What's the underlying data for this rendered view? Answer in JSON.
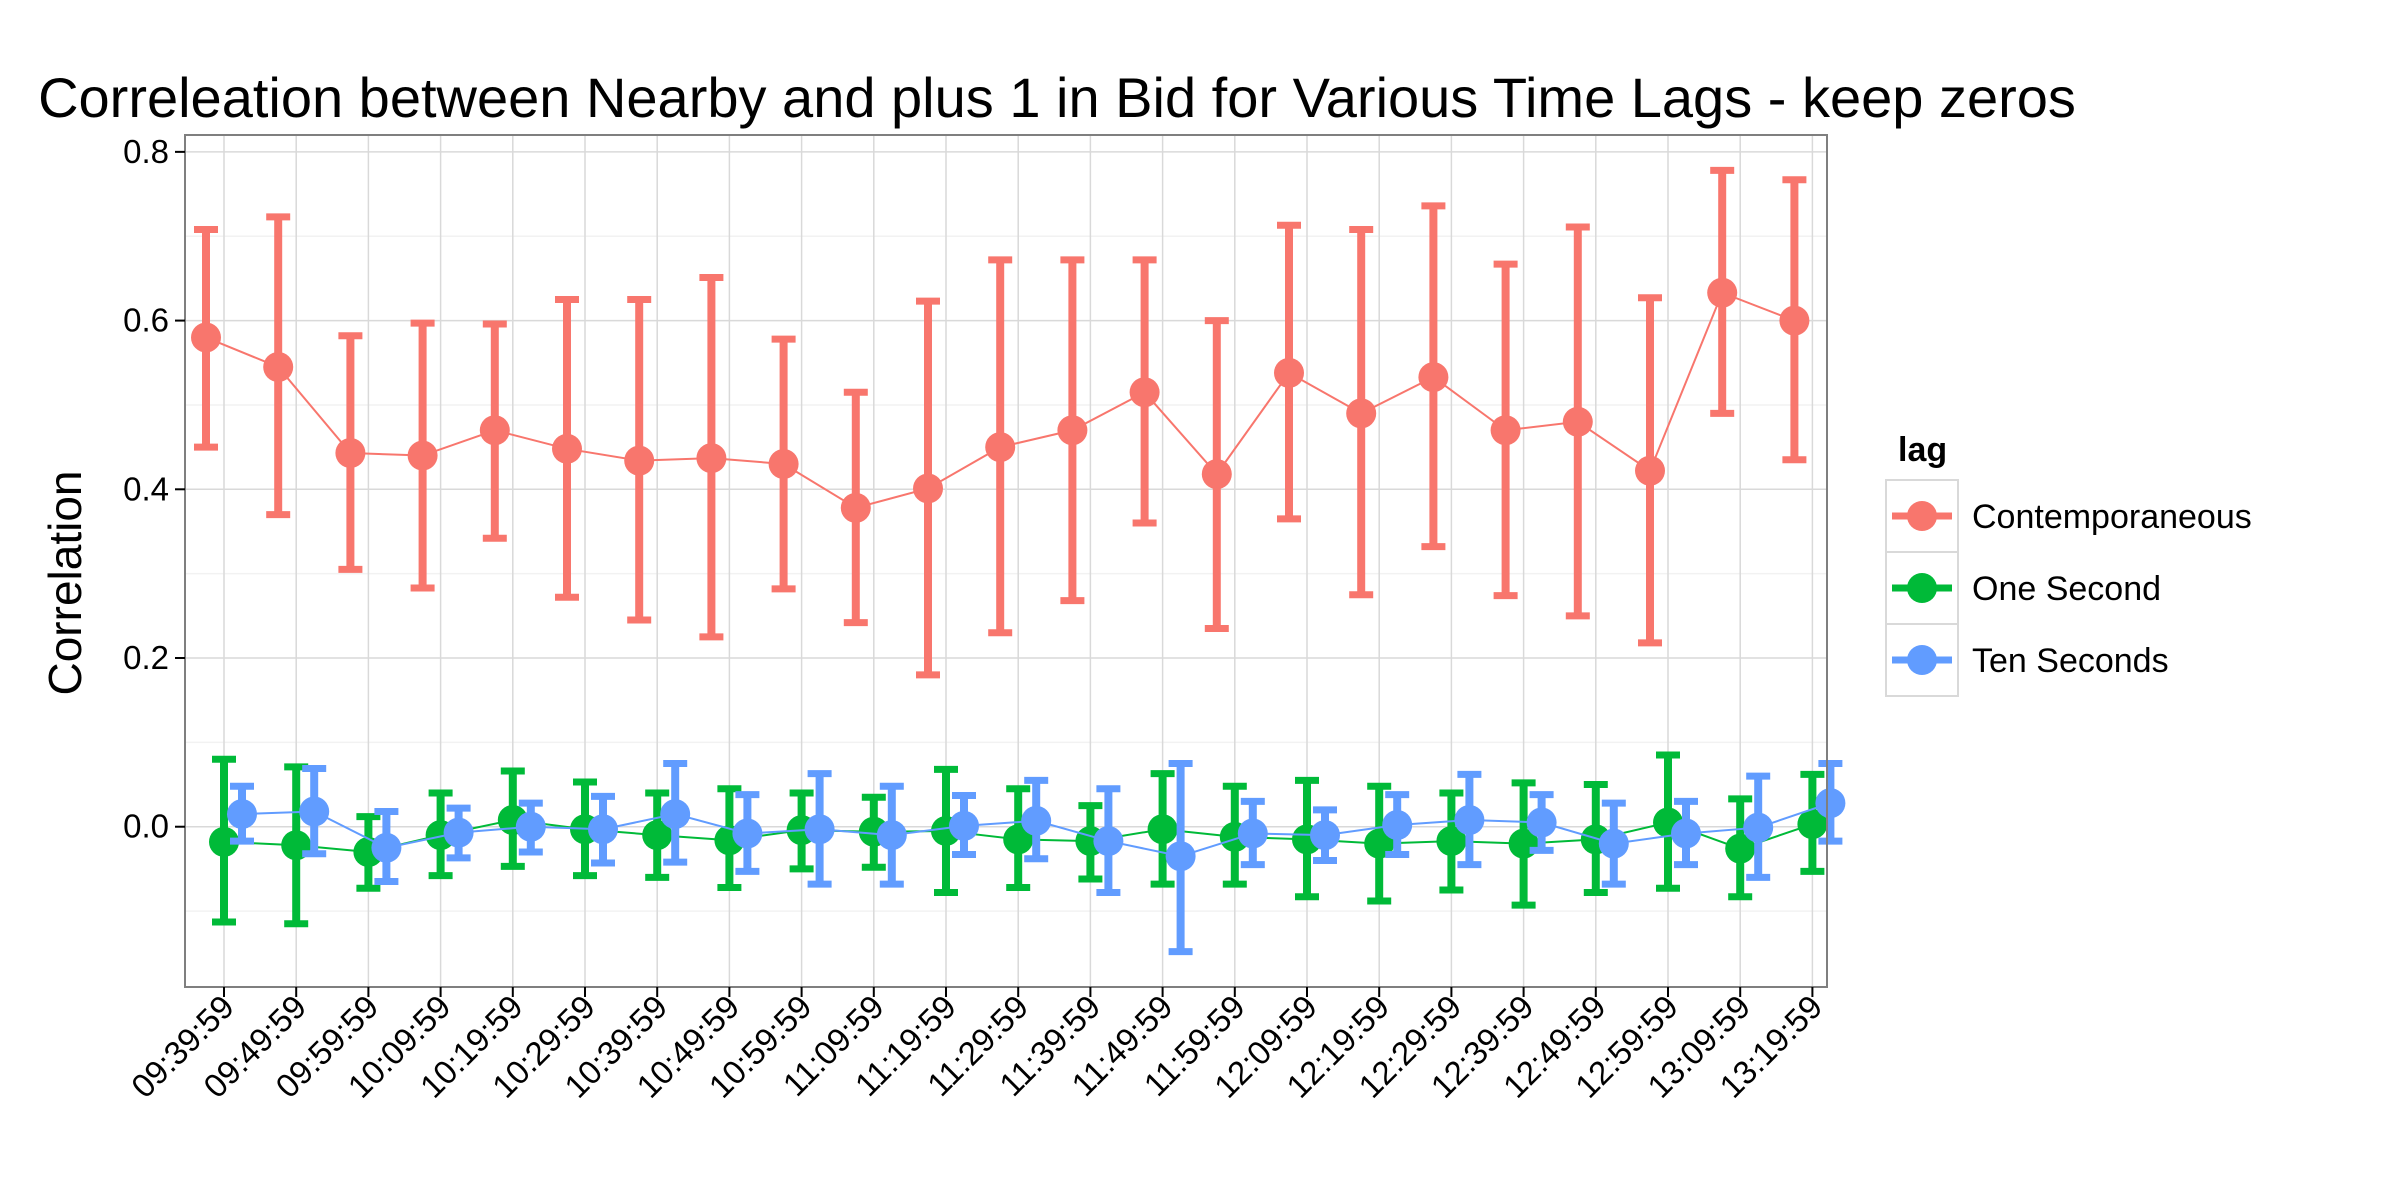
{
  "chart_data": {
    "type": "line",
    "title": "Correleation between Nearby and plus 1 in Bid for Various Time Lags - keep zeros",
    "xlabel": "",
    "ylabel": "Correlation",
    "ylim": [
      -0.19,
      0.82
    ],
    "yticks": [
      0.0,
      0.2,
      0.4,
      0.6,
      0.8
    ],
    "ytick_labels": [
      "0.0",
      "0.2",
      "0.4",
      "0.6",
      "0.8"
    ],
    "grid": true,
    "legend_position": "right",
    "legend_title": "lag",
    "x": [
      "09:39:59",
      "09:49:59",
      "09:59:59",
      "10:09:59",
      "10:19:59",
      "10:29:59",
      "10:39:59",
      "10:49:59",
      "10:59:59",
      "11:09:59",
      "11:19:59",
      "11:29:59",
      "11:39:59",
      "11:49:59",
      "11:59:59",
      "12:09:59",
      "12:19:59",
      "12:29:59",
      "12:39:59",
      "12:49:59",
      "12:59:59",
      "13:09:59",
      "13:19:59"
    ],
    "series": [
      {
        "name": "Contemporaneous",
        "color": "#F8766D",
        "x_offset": -1,
        "values": [
          0.58,
          0.545,
          0.443,
          0.44,
          0.47,
          0.448,
          0.434,
          0.437,
          0.43,
          0.378,
          0.401,
          0.45,
          0.47,
          0.515,
          0.418,
          0.538,
          0.49,
          0.533,
          0.47,
          0.48,
          0.422,
          0.633,
          0.6
        ],
        "lower": [
          0.45,
          0.37,
          0.305,
          0.283,
          0.342,
          0.272,
          0.245,
          0.225,
          0.282,
          0.242,
          0.18,
          0.23,
          0.268,
          0.36,
          0.235,
          0.365,
          0.275,
          0.332,
          0.274,
          0.25,
          0.218,
          0.49,
          0.435
        ],
        "upper": [
          0.708,
          0.723,
          0.582,
          0.597,
          0.596,
          0.625,
          0.625,
          0.651,
          0.578,
          0.515,
          0.623,
          0.672,
          0.672,
          0.672,
          0.6,
          0.713,
          0.708,
          0.736,
          0.667,
          0.711,
          0.627,
          0.778,
          0.767
        ]
      },
      {
        "name": "One Second",
        "color": "#00BA38",
        "x_offset": 0,
        "values": [
          -0.018,
          -0.022,
          -0.03,
          -0.01,
          0.008,
          -0.003,
          -0.01,
          -0.016,
          -0.004,
          -0.006,
          -0.005,
          -0.015,
          -0.017,
          -0.003,
          -0.012,
          -0.015,
          -0.02,
          -0.017,
          -0.02,
          -0.015,
          0.005,
          -0.026,
          0.003
        ],
        "lower": [
          -0.113,
          -0.115,
          -0.073,
          -0.058,
          -0.047,
          -0.058,
          -0.06,
          -0.072,
          -0.05,
          -0.048,
          -0.078,
          -0.072,
          -0.062,
          -0.068,
          -0.068,
          -0.083,
          -0.088,
          -0.075,
          -0.093,
          -0.078,
          -0.073,
          -0.083,
          -0.053
        ],
        "upper": [
          0.08,
          0.071,
          0.012,
          0.04,
          0.066,
          0.053,
          0.04,
          0.045,
          0.04,
          0.035,
          0.068,
          0.045,
          0.025,
          0.063,
          0.048,
          0.055,
          0.048,
          0.04,
          0.052,
          0.05,
          0.085,
          0.033,
          0.062
        ]
      },
      {
        "name": "Ten Seconds",
        "color": "#619CFF",
        "x_offset": 1,
        "values": [
          0.015,
          0.018,
          -0.025,
          -0.007,
          0.0,
          -0.003,
          0.015,
          -0.008,
          -0.003,
          -0.01,
          0.001,
          0.007,
          -0.017,
          -0.035,
          -0.008,
          -0.01,
          0.002,
          0.008,
          0.005,
          -0.02,
          -0.008,
          -0.001,
          0.028
        ],
        "lower": [
          -0.017,
          -0.032,
          -0.065,
          -0.037,
          -0.03,
          -0.043,
          -0.042,
          -0.053,
          -0.068,
          -0.068,
          -0.033,
          -0.038,
          -0.078,
          -0.148,
          -0.045,
          -0.04,
          -0.033,
          -0.045,
          -0.028,
          -0.068,
          -0.045,
          -0.06,
          -0.017
        ],
        "upper": [
          0.048,
          0.069,
          0.018,
          0.022,
          0.028,
          0.036,
          0.075,
          0.038,
          0.063,
          0.048,
          0.037,
          0.055,
          0.045,
          0.075,
          0.03,
          0.02,
          0.038,
          0.062,
          0.038,
          0.028,
          0.03,
          0.06,
          0.075
        ]
      }
    ]
  }
}
